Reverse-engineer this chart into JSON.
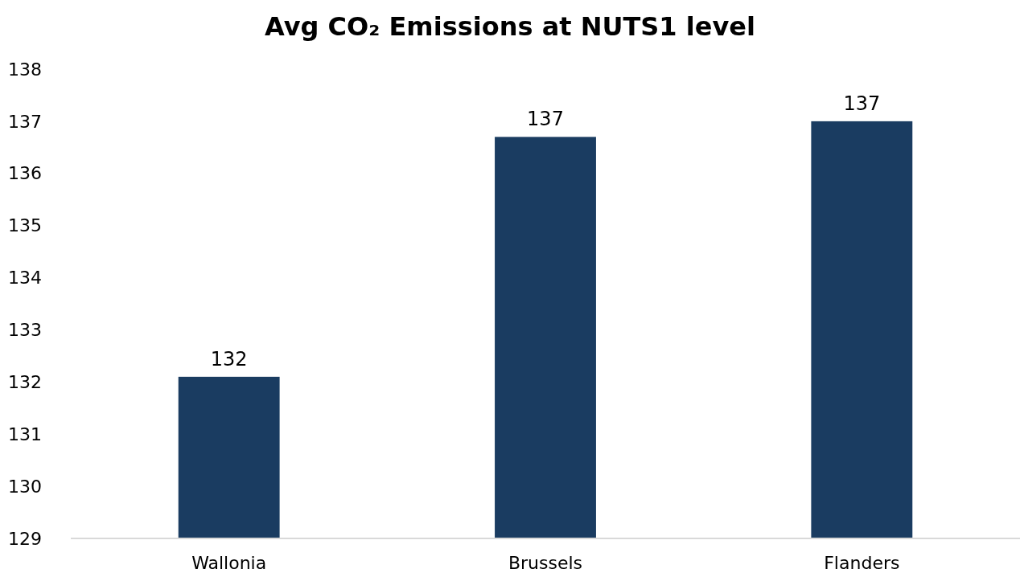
{
  "chart_data": {
    "type": "bar",
    "title": "Avg CO₂ Emissions at NUTS1 level",
    "categories": [
      "Wallonia",
      "Brussels",
      "Flanders"
    ],
    "values": [
      132.1,
      136.7,
      137.0
    ],
    "value_labels": [
      "132",
      "137",
      "137"
    ],
    "color": "#1a3c61",
    "ylim": [
      129,
      138
    ],
    "yticks": [
      129,
      130,
      131,
      132,
      133,
      134,
      135,
      136,
      137,
      138
    ],
    "grid": false
  }
}
